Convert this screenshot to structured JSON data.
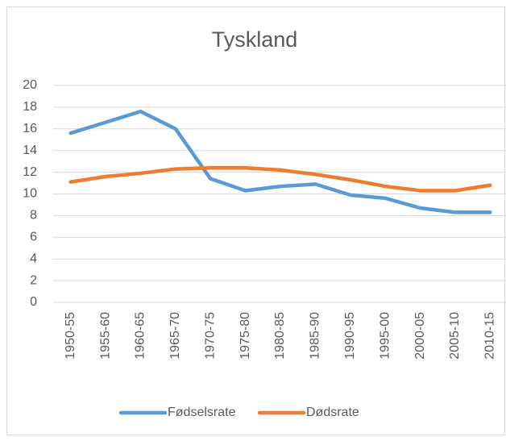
{
  "chart_data": {
    "type": "line",
    "title": "Tyskland",
    "categories": [
      "1950-55",
      "1955-60",
      "1960-65",
      "1965-70",
      "1970-75",
      "1975-80",
      "1980-85",
      "1985-90",
      "1990-95",
      "1995-00",
      "2000-05",
      "2005-10",
      "2010-15"
    ],
    "series": [
      {
        "name": "Fødselsrate",
        "color": "#5b9bd5",
        "values": [
          15.6,
          16.6,
          17.6,
          16.0,
          11.4,
          10.3,
          10.7,
          10.9,
          9.9,
          9.6,
          8.7,
          8.3,
          8.3
        ]
      },
      {
        "name": "Dødsrate",
        "color": "#ed7d31",
        "values": [
          11.1,
          11.6,
          11.9,
          12.3,
          12.4,
          12.4,
          12.2,
          11.8,
          11.3,
          10.7,
          10.3,
          10.3,
          10.8
        ]
      }
    ],
    "ylim": [
      0,
      20
    ],
    "yticks": [
      0,
      2,
      4,
      6,
      8,
      10,
      12,
      14,
      16,
      18,
      20
    ],
    "grid": true,
    "legend": "bottom"
  }
}
